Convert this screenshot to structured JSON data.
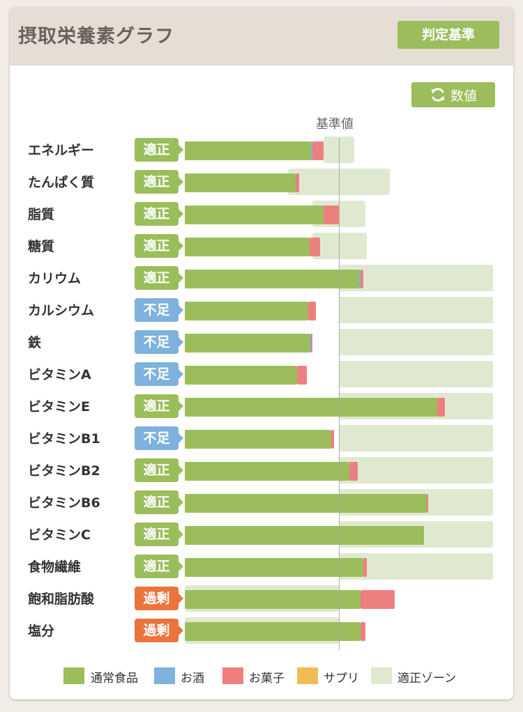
{
  "header": {
    "title": "摂取栄養素グラフ",
    "criteria_button": "判定基準"
  },
  "toolbar": {
    "value_button": "数値",
    "value_icon": "refresh-icon"
  },
  "colors": {
    "normal_food": "#9bbd5b",
    "alcohol": "#7eb1db",
    "snacks": "#ee7f7f",
    "supplement": "#f2bc55",
    "proper_zone": "#dfe9cf",
    "badge_ok": "#9bbd5b",
    "badge_low": "#7eb1db",
    "badge_high": "#e9743c"
  },
  "chart_data": {
    "type": "bar",
    "orientation": "horizontal",
    "stacked": true,
    "reference_label": "基準値",
    "reference_value": 100,
    "unit": "% of reference",
    "xlim": [
      0,
      210
    ],
    "categories": [
      "エネルギー",
      "たんぱく質",
      "脂質",
      "糖質",
      "カリウム",
      "カルシウム",
      "鉄",
      "ビタミンA",
      "ビタミンE",
      "ビタミンB1",
      "ビタミンB2",
      "ビタミンB6",
      "ビタミンC",
      "食物繊維",
      "飽和脂肪酸",
      "塩分"
    ],
    "status": [
      "適正",
      "適正",
      "適正",
      "適正",
      "適正",
      "不足",
      "不足",
      "不足",
      "適正",
      "不足",
      "適正",
      "適正",
      "適正",
      "適正",
      "過剰",
      "過剰"
    ],
    "series": [
      {
        "name": "通常食品",
        "values": [
          82,
          72,
          90,
          81,
          113,
          80,
          81,
          73,
          164,
          95,
          107,
          157,
          155,
          116,
          114,
          114
        ]
      },
      {
        "name": "お酒",
        "values": [
          1,
          0,
          0,
          0,
          1,
          0,
          1,
          0,
          0,
          0,
          0,
          0,
          0,
          0,
          0,
          0
        ]
      },
      {
        "name": "お菓子",
        "values": [
          7,
          2,
          10,
          7,
          2,
          5,
          1,
          6,
          5,
          2,
          5,
          1,
          0,
          2,
          22,
          3
        ]
      },
      {
        "name": "サプリ",
        "values": [
          0,
          0,
          0,
          0,
          0,
          0,
          0,
          0,
          0,
          0,
          0,
          0,
          0,
          0,
          0,
          0
        ]
      }
    ],
    "proper_zone": [
      [
        90,
        110
      ],
      [
        67,
        133
      ],
      [
        83,
        117
      ],
      [
        83,
        118
      ],
      [
        100,
        200
      ],
      [
        100,
        200
      ],
      [
        100,
        200
      ],
      [
        100,
        200
      ],
      [
        100,
        200
      ],
      [
        100,
        200
      ],
      [
        100,
        200
      ],
      [
        100,
        200
      ],
      [
        100,
        200
      ],
      [
        100,
        200
      ],
      [
        0,
        100
      ],
      [
        0,
        100
      ]
    ],
    "legend": [
      "通常食品",
      "お酒",
      "お菓子",
      "サプリ",
      "適正ゾーン"
    ],
    "legend_placement": "bottom"
  }
}
